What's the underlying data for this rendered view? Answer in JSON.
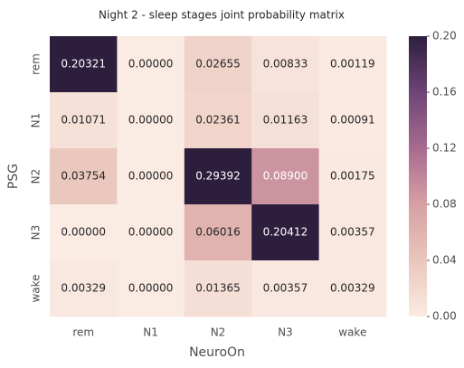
{
  "chart_data": {
    "type": "heatmap",
    "title": "Night 2 - sleep stages joint probability matrix",
    "xlabel": "NeuroOn",
    "ylabel": "PSG",
    "x_categories": [
      "rem",
      "N1",
      "N2",
      "N3",
      "wake"
    ],
    "y_categories": [
      "rem",
      "N1",
      "N2",
      "N3",
      "wake"
    ],
    "values": [
      [
        0.20321,
        0,
        0.02655,
        0.00833,
        0.00119
      ],
      [
        0.01071,
        0,
        0.02361,
        0.01163,
        0.00091
      ],
      [
        0.03754,
        0,
        0.29392,
        0.089,
        0.00175
      ],
      [
        0,
        0,
        0.06016,
        0.20412,
        0.00357
      ],
      [
        0.00329,
        0,
        0.01365,
        0.00357,
        0.00329
      ]
    ],
    "value_labels": [
      [
        "0.20321",
        "0.00000",
        "0.02655",
        "0.00833",
        "0.00119"
      ],
      [
        "0.01071",
        "0.00000",
        "0.02361",
        "0.01163",
        "0.00091"
      ],
      [
        "0.03754",
        "0.00000",
        "0.29392",
        "0.08900",
        "0.00175"
      ],
      [
        "0.00000",
        "0.00000",
        "0.06016",
        "0.20412",
        "0.00357"
      ],
      [
        "0.00329",
        "0.00000",
        "0.01365",
        "0.00357",
        "0.00329"
      ]
    ],
    "clim": [
      0,
      0.2
    ],
    "cticks": [
      {
        "value": 0,
        "label": "0.00"
      },
      {
        "value": 0.04,
        "label": "0.04"
      },
      {
        "value": 0.08,
        "label": "0.08"
      },
      {
        "value": 0.12,
        "label": "0.12"
      },
      {
        "value": 0.16,
        "label": "0.16"
      },
      {
        "value": 0.2,
        "label": "0.20"
      }
    ],
    "colormap": [
      "#faebe3",
      "#eac6bb",
      "#d6a0a4",
      "#a86b90",
      "#6d4576",
      "#2d1e3e"
    ]
  }
}
